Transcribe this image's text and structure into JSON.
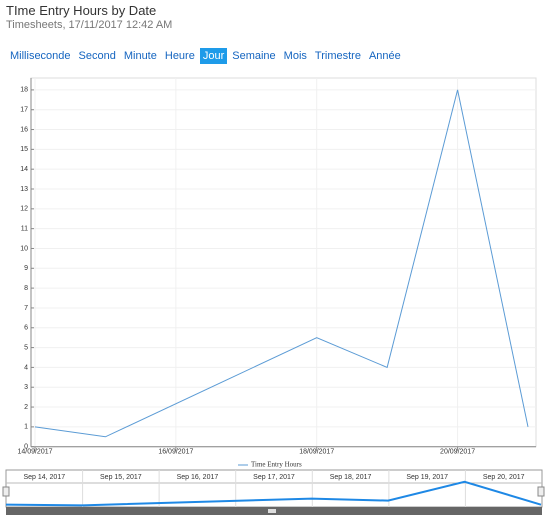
{
  "chart_data": {
    "type": "line",
    "title": "TIme Entry Hours by Date",
    "subtitle": "Timesheets, 17/11/2017 12:42 AM",
    "range_buttons": [
      "Milliseconde",
      "Second",
      "Minute",
      "Heure",
      "Jour",
      "Semaine",
      "Mois",
      "Trimestre",
      "Année"
    ],
    "active_button": 4,
    "x": [
      "14/09/2017",
      "15/09/2017",
      "18/09/2017",
      "19/09/2017",
      "20/09/2017",
      "21/09/2017"
    ],
    "series": [
      {
        "name": "Time Entry Hours",
        "color": "#5b9bd5",
        "values": [
          1,
          0.5,
          5.5,
          4,
          18,
          1
        ]
      }
    ],
    "xlim": [
      "14/09/2017",
      "21/09/2017"
    ],
    "xticks": [
      "14/09/2017",
      "16/09/2017",
      "18/09/2017",
      "20/09/2017"
    ],
    "ylim": [
      0,
      18.6
    ],
    "yticks": [
      0,
      1,
      2,
      3,
      4,
      5,
      6,
      7,
      8,
      9,
      10,
      11,
      12,
      13,
      14,
      15,
      16,
      17,
      18
    ],
    "grid": true,
    "navigator": {
      "labels": [
        "Sep 14, 2017",
        "Sep 15, 2017",
        "Sep 16, 2017",
        "Sep 17, 2017",
        "Sep 18, 2017",
        "Sep 19, 2017",
        "Sep 20, 2017"
      ],
      "color": "#1e88e5"
    }
  }
}
